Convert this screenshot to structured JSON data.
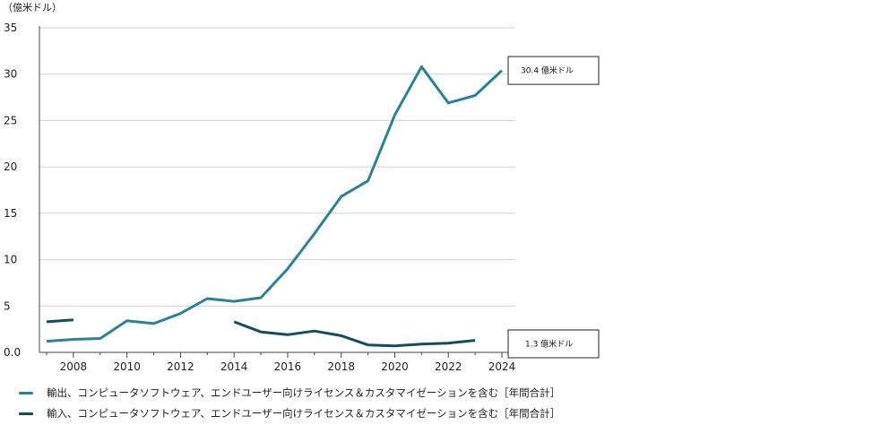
{
  "colors": {
    "exports": "#2b8290",
    "imports": "#134e59",
    "grid": "#d0d0d0",
    "axis": "#444444"
  },
  "chart_data": {
    "type": "line",
    "unit_label": "（億米ドル）",
    "ylim": [
      0,
      35
    ],
    "yticks": [
      {
        "value": 0,
        "label": "0.0"
      },
      {
        "value": 5,
        "label": "5"
      },
      {
        "value": 10,
        "label": "10"
      },
      {
        "value": 15,
        "label": "15"
      },
      {
        "value": 20,
        "label": "20"
      },
      {
        "value": 25,
        "label": "25"
      },
      {
        "value": 30,
        "label": "30"
      },
      {
        "value": 35,
        "label": "35"
      }
    ],
    "xlim": [
      2007,
      2024
    ],
    "xticks": [
      "2008",
      "2010",
      "2012",
      "2014",
      "2016",
      "2018",
      "2020",
      "2022",
      "2024"
    ],
    "grid": true,
    "series": [
      {
        "name": "輸出、コンピュータソフトウェア、エンドユーザー向けライセンス＆カスタマイゼーションを含む［年間合計］",
        "color_key": "exports",
        "segments": [
          {
            "x": [
              2007,
              2008,
              2009,
              2010,
              2011,
              2012,
              2013,
              2014,
              2015,
              2016,
              2017,
              2018,
              2019,
              2020,
              2021,
              2022,
              2023,
              2024
            ],
            "y": [
              1.2,
              1.4,
              1.5,
              3.4,
              3.1,
              4.2,
              5.8,
              5.5,
              5.9,
              9.0,
              12.8,
              16.8,
              18.5,
              25.6,
              30.8,
              26.9,
              27.7,
              30.4
            ]
          }
        ]
      },
      {
        "name": "輸入、コンピュータソフトウェア、エンドユーザー向けライセンス＆カスタマイゼーションを含む［年間合計］",
        "color_key": "imports",
        "segments": [
          {
            "x": [
              2007,
              2008
            ],
            "y": [
              3.3,
              3.5
            ]
          },
          {
            "x": [
              2014,
              2015,
              2016,
              2017,
              2018,
              2019,
              2020,
              2021,
              2022,
              2023
            ],
            "y": [
              3.3,
              2.2,
              1.9,
              2.3,
              1.8,
              0.8,
              0.7,
              0.9,
              1.0,
              1.3
            ]
          }
        ]
      }
    ],
    "annotations": [
      {
        "text": "30.4 億米ドル",
        "series": 0
      },
      {
        "text": "1.3 億米ドル",
        "series": 1
      }
    ]
  }
}
